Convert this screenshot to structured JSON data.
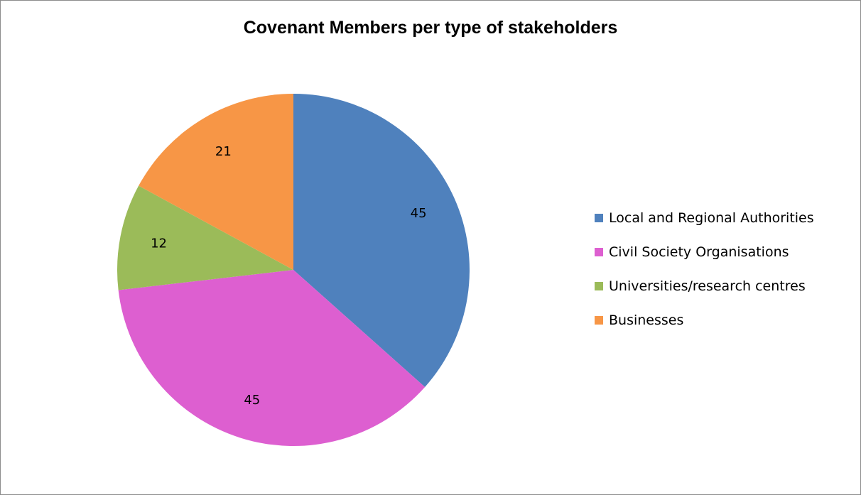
{
  "chart_data": {
    "type": "pie",
    "title": "Covenant Members per type of stakeholders",
    "categories": [
      "Local and Regional Authorities",
      "Civil Society Organisations",
      "Universities/research centres",
      "Businesses"
    ],
    "values": [
      45,
      45,
      12,
      21
    ],
    "data_labels": [
      "45",
      "45",
      "12",
      "21"
    ],
    "colors": [
      "#4f81bd",
      "#dd5fd0",
      "#9bbb59",
      "#f79646"
    ],
    "start_angle_deg": 0,
    "direction": "clockwise",
    "legend_position": "right"
  }
}
